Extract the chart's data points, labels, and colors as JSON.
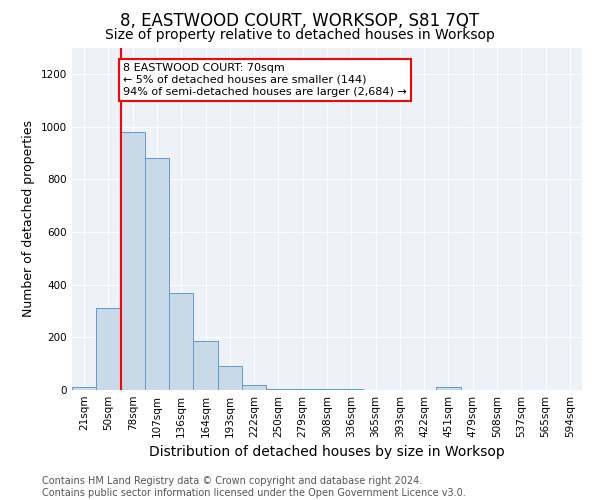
{
  "title": "8, EASTWOOD COURT, WORKSOP, S81 7QT",
  "subtitle": "Size of property relative to detached houses in Worksop",
  "xlabel": "Distribution of detached houses by size in Worksop",
  "ylabel": "Number of detached properties",
  "bins": [
    "21sqm",
    "50sqm",
    "78sqm",
    "107sqm",
    "136sqm",
    "164sqm",
    "193sqm",
    "222sqm",
    "250sqm",
    "279sqm",
    "308sqm",
    "336sqm",
    "365sqm",
    "393sqm",
    "422sqm",
    "451sqm",
    "479sqm",
    "508sqm",
    "537sqm",
    "565sqm",
    "594sqm"
  ],
  "values": [
    10,
    310,
    980,
    880,
    370,
    185,
    90,
    20,
    5,
    3,
    2,
    2,
    1,
    0,
    0,
    10,
    0,
    0,
    0,
    0,
    0
  ],
  "bar_color": "#c9d9e8",
  "bar_edge_color": "#5b9bd5",
  "annotation_text": "8 EASTWOOD COURT: 70sqm\n← 5% of detached houses are smaller (144)\n94% of semi-detached houses are larger (2,684) →",
  "annotation_box_color": "white",
  "annotation_box_edge_color": "red",
  "property_line_color": "red",
  "ylim": [
    0,
    1300
  ],
  "yticks": [
    0,
    200,
    400,
    600,
    800,
    1000,
    1200
  ],
  "footer": "Contains HM Land Registry data © Crown copyright and database right 2024.\nContains public sector information licensed under the Open Government Licence v3.0.",
  "background_color": "#eef2f8",
  "title_fontsize": 12,
  "subtitle_fontsize": 10,
  "xlabel_fontsize": 10,
  "ylabel_fontsize": 9,
  "footer_fontsize": 7,
  "annotation_fontsize": 8,
  "tick_fontsize": 7.5
}
